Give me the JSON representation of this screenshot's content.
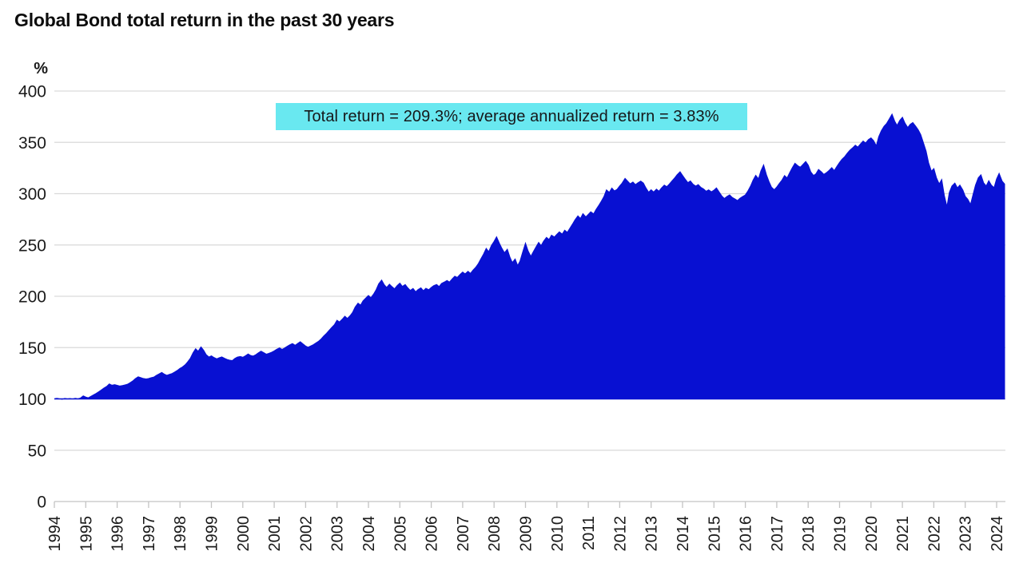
{
  "title": "Global Bond total return in the past 30 years",
  "annotation": {
    "text": "Total return = 209.3%; average annualized return = 3.83%",
    "bg_color": "#69e8f0",
    "text_color": "#16181a"
  },
  "colors": {
    "area_fill": "#0810d2",
    "gridline": "#d9d9d9",
    "axis_line": "#c4c4c4",
    "label_text": "#1a1a1a"
  },
  "y_axis": {
    "unit": "%",
    "ticks": [
      0,
      50,
      100,
      150,
      200,
      250,
      300,
      350,
      400
    ]
  },
  "x_axis": {
    "ticks": [
      1994,
      1995,
      1996,
      1997,
      1998,
      1999,
      2000,
      2001,
      2002,
      2003,
      2004,
      2005,
      2006,
      2007,
      2008,
      2009,
      2010,
      2011,
      2012,
      2013,
      2014,
      2015,
      2016,
      2017,
      2018,
      2019,
      2020,
      2021,
      2022,
      2023,
      2024
    ]
  },
  "chart_data": {
    "type": "area",
    "title": "Global Bond total return in the past 30 years",
    "ylabel": "%",
    "ylim": [
      0,
      400
    ],
    "xlim": [
      1994,
      2024.3
    ],
    "baseline": 100,
    "grid": "horizontal",
    "legend": "none",
    "annotation": "Total return = 209.3%; average annualized return = 3.83%",
    "total_return_pct": 209.3,
    "avg_annualized_return_pct": 3.83,
    "final_index_value": 309.3,
    "points": [
      [
        1994.0,
        100.0
      ],
      [
        1994.08,
        100.4
      ],
      [
        1994.17,
        100.1
      ],
      [
        1994.25,
        99.8
      ],
      [
        1994.33,
        100.3
      ],
      [
        1994.42,
        100.0
      ],
      [
        1994.5,
        100.2
      ],
      [
        1994.58,
        99.9
      ],
      [
        1994.67,
        100.4
      ],
      [
        1994.75,
        100.1
      ],
      [
        1994.83,
        100.6
      ],
      [
        1994.92,
        102.8
      ],
      [
        1995.0,
        101.6
      ],
      [
        1995.08,
        100.9
      ],
      [
        1995.17,
        102.5
      ],
      [
        1995.25,
        103.8
      ],
      [
        1995.33,
        105.2
      ],
      [
        1995.42,
        106.9
      ],
      [
        1995.5,
        108.6
      ],
      [
        1995.58,
        110.4
      ],
      [
        1995.67,
        112.1
      ],
      [
        1995.75,
        114.4
      ],
      [
        1995.83,
        113.2
      ],
      [
        1995.92,
        113.8
      ],
      [
        1996.0,
        113.1
      ],
      [
        1996.08,
        112.4
      ],
      [
        1996.17,
        112.9
      ],
      [
        1996.25,
        113.5
      ],
      [
        1996.33,
        114.2
      ],
      [
        1996.42,
        115.8
      ],
      [
        1996.5,
        117.4
      ],
      [
        1996.58,
        119.6
      ],
      [
        1996.67,
        121.4
      ],
      [
        1996.75,
        120.6
      ],
      [
        1996.83,
        119.8
      ],
      [
        1996.92,
        119.3
      ],
      [
        1997.0,
        119.7
      ],
      [
        1997.08,
        120.5
      ],
      [
        1997.17,
        121.2
      ],
      [
        1997.25,
        122.8
      ],
      [
        1997.33,
        124.1
      ],
      [
        1997.42,
        125.6
      ],
      [
        1997.5,
        124.0
      ],
      [
        1997.58,
        122.9
      ],
      [
        1997.67,
        123.8
      ],
      [
        1997.75,
        124.6
      ],
      [
        1997.83,
        126.0
      ],
      [
        1997.92,
        127.7
      ],
      [
        1998.0,
        129.6
      ],
      [
        1998.08,
        131.0
      ],
      [
        1998.17,
        133.2
      ],
      [
        1998.25,
        136.0
      ],
      [
        1998.33,
        139.4
      ],
      [
        1998.42,
        144.8
      ],
      [
        1998.5,
        148.6
      ],
      [
        1998.58,
        146.2
      ],
      [
        1998.67,
        150.4
      ],
      [
        1998.75,
        147.2
      ],
      [
        1998.83,
        143.1
      ],
      [
        1998.92,
        140.6
      ],
      [
        1999.0,
        141.8
      ],
      [
        1999.08,
        140.2
      ],
      [
        1999.17,
        138.9
      ],
      [
        1999.25,
        140.0
      ],
      [
        1999.33,
        140.8
      ],
      [
        1999.42,
        139.4
      ],
      [
        1999.5,
        138.3
      ],
      [
        1999.58,
        137.6
      ],
      [
        1999.67,
        137.2
      ],
      [
        1999.75,
        139.3
      ],
      [
        1999.83,
        140.6
      ],
      [
        1999.92,
        141.2
      ],
      [
        2000.0,
        140.4
      ],
      [
        2000.08,
        141.8
      ],
      [
        2000.17,
        143.6
      ],
      [
        2000.25,
        142.2
      ],
      [
        2000.33,
        141.6
      ],
      [
        2000.42,
        143.0
      ],
      [
        2000.5,
        144.8
      ],
      [
        2000.58,
        146.4
      ],
      [
        2000.67,
        144.9
      ],
      [
        2000.75,
        143.4
      ],
      [
        2000.83,
        144.2
      ],
      [
        2000.92,
        145.3
      ],
      [
        2001.0,
        146.6
      ],
      [
        2001.08,
        148.2
      ],
      [
        2001.17,
        149.6
      ],
      [
        2001.25,
        148.1
      ],
      [
        2001.33,
        149.4
      ],
      [
        2001.42,
        151.2
      ],
      [
        2001.5,
        152.6
      ],
      [
        2001.58,
        153.8
      ],
      [
        2001.67,
        152.1
      ],
      [
        2001.75,
        153.9
      ],
      [
        2001.83,
        155.6
      ],
      [
        2001.92,
        153.2
      ],
      [
        2002.0,
        151.4
      ],
      [
        2002.08,
        150.2
      ],
      [
        2002.17,
        151.6
      ],
      [
        2002.25,
        152.8
      ],
      [
        2002.33,
        154.4
      ],
      [
        2002.42,
        156.2
      ],
      [
        2002.5,
        158.4
      ],
      [
        2002.58,
        161.2
      ],
      [
        2002.67,
        163.8
      ],
      [
        2002.75,
        166.6
      ],
      [
        2002.83,
        169.4
      ],
      [
        2002.92,
        172.3
      ],
      [
        2003.0,
        176.4
      ],
      [
        2003.08,
        174.8
      ],
      [
        2003.17,
        177.6
      ],
      [
        2003.25,
        180.4
      ],
      [
        2003.33,
        178.2
      ],
      [
        2003.42,
        181.0
      ],
      [
        2003.5,
        184.2
      ],
      [
        2003.58,
        189.4
      ],
      [
        2003.67,
        193.1
      ],
      [
        2003.75,
        191.2
      ],
      [
        2003.83,
        195.4
      ],
      [
        2003.92,
        198.2
      ],
      [
        2004.0,
        200.6
      ],
      [
        2004.08,
        198.4
      ],
      [
        2004.17,
        202.2
      ],
      [
        2004.25,
        206.4
      ],
      [
        2004.33,
        212.1
      ],
      [
        2004.42,
        215.6
      ],
      [
        2004.5,
        211.2
      ],
      [
        2004.58,
        208.4
      ],
      [
        2004.67,
        211.6
      ],
      [
        2004.75,
        209.2
      ],
      [
        2004.83,
        207.1
      ],
      [
        2004.92,
        210.4
      ],
      [
        2005.0,
        212.6
      ],
      [
        2005.08,
        209.4
      ],
      [
        2005.17,
        211.2
      ],
      [
        2005.25,
        208.2
      ],
      [
        2005.33,
        205.6
      ],
      [
        2005.42,
        207.4
      ],
      [
        2005.5,
        204.2
      ],
      [
        2005.58,
        206.4
      ],
      [
        2005.67,
        208.1
      ],
      [
        2005.75,
        205.2
      ],
      [
        2005.83,
        207.6
      ],
      [
        2005.92,
        206.2
      ],
      [
        2006.0,
        208.4
      ],
      [
        2006.08,
        210.2
      ],
      [
        2006.17,
        211.4
      ],
      [
        2006.25,
        209.2
      ],
      [
        2006.33,
        212.4
      ],
      [
        2006.42,
        213.8
      ],
      [
        2006.5,
        215.2
      ],
      [
        2006.58,
        213.6
      ],
      [
        2006.67,
        216.8
      ],
      [
        2006.75,
        219.4
      ],
      [
        2006.83,
        218.2
      ],
      [
        2006.92,
        221.2
      ],
      [
        2007.0,
        223.4
      ],
      [
        2007.08,
        221.6
      ],
      [
        2007.17,
        224.2
      ],
      [
        2007.25,
        222.1
      ],
      [
        2007.33,
        225.4
      ],
      [
        2007.42,
        228.2
      ],
      [
        2007.5,
        231.6
      ],
      [
        2007.58,
        236.2
      ],
      [
        2007.67,
        241.1
      ],
      [
        2007.75,
        246.4
      ],
      [
        2007.83,
        243.2
      ],
      [
        2007.92,
        249.6
      ],
      [
        2008.0,
        253.2
      ],
      [
        2008.08,
        257.6
      ],
      [
        2008.17,
        251.2
      ],
      [
        2008.25,
        246.4
      ],
      [
        2008.33,
        242.2
      ],
      [
        2008.42,
        245.6
      ],
      [
        2008.5,
        238.2
      ],
      [
        2008.58,
        232.6
      ],
      [
        2008.67,
        236.1
      ],
      [
        2008.75,
        229.6
      ],
      [
        2008.83,
        234.2
      ],
      [
        2008.92,
        243.6
      ],
      [
        2009.0,
        251.4
      ],
      [
        2009.08,
        244.2
      ],
      [
        2009.17,
        238.6
      ],
      [
        2009.25,
        243.1
      ],
      [
        2009.33,
        247.6
      ],
      [
        2009.42,
        252.2
      ],
      [
        2009.5,
        249.1
      ],
      [
        2009.58,
        253.6
      ],
      [
        2009.67,
        257.2
      ],
      [
        2009.75,
        255.1
      ],
      [
        2009.83,
        259.4
      ],
      [
        2009.92,
        257.6
      ],
      [
        2010.0,
        260.2
      ],
      [
        2010.08,
        262.6
      ],
      [
        2010.17,
        260.4
      ],
      [
        2010.25,
        264.2
      ],
      [
        2010.33,
        262.1
      ],
      [
        2010.42,
        266.4
      ],
      [
        2010.5,
        270.2
      ],
      [
        2010.58,
        274.4
      ],
      [
        2010.67,
        278.1
      ],
      [
        2010.75,
        275.6
      ],
      [
        2010.83,
        280.2
      ],
      [
        2010.92,
        277.1
      ],
      [
        2011.0,
        279.6
      ],
      [
        2011.08,
        282.2
      ],
      [
        2011.17,
        280.1
      ],
      [
        2011.25,
        284.4
      ],
      [
        2011.33,
        288.2
      ],
      [
        2011.42,
        292.6
      ],
      [
        2011.5,
        297.1
      ],
      [
        2011.58,
        303.4
      ],
      [
        2011.67,
        301.1
      ],
      [
        2011.75,
        305.2
      ],
      [
        2011.83,
        302.6
      ],
      [
        2011.92,
        304.1
      ],
      [
        2012.0,
        307.4
      ],
      [
        2012.08,
        310.2
      ],
      [
        2012.17,
        314.6
      ],
      [
        2012.25,
        312.1
      ],
      [
        2012.33,
        309.4
      ],
      [
        2012.42,
        311.2
      ],
      [
        2012.5,
        308.6
      ],
      [
        2012.58,
        310.4
      ],
      [
        2012.67,
        312.1
      ],
      [
        2012.75,
        310.2
      ],
      [
        2012.83,
        305.6
      ],
      [
        2012.92,
        301.2
      ],
      [
        2013.0,
        303.6
      ],
      [
        2013.08,
        301.4
      ],
      [
        2013.17,
        304.2
      ],
      [
        2013.25,
        302.2
      ],
      [
        2013.33,
        305.4
      ],
      [
        2013.42,
        308.2
      ],
      [
        2013.5,
        306.6
      ],
      [
        2013.58,
        309.2
      ],
      [
        2013.67,
        312.4
      ],
      [
        2013.75,
        315.2
      ],
      [
        2013.83,
        318.4
      ],
      [
        2013.92,
        321.2
      ],
      [
        2014.0,
        317.6
      ],
      [
        2014.08,
        314.2
      ],
      [
        2014.17,
        310.6
      ],
      [
        2014.25,
        312.2
      ],
      [
        2014.33,
        309.1
      ],
      [
        2014.42,
        307.2
      ],
      [
        2014.5,
        308.6
      ],
      [
        2014.58,
        306.1
      ],
      [
        2014.67,
        304.4
      ],
      [
        2014.75,
        302.2
      ],
      [
        2014.83,
        303.6
      ],
      [
        2014.92,
        301.6
      ],
      [
        2015.0,
        303.2
      ],
      [
        2015.08,
        305.4
      ],
      [
        2015.17,
        301.2
      ],
      [
        2015.25,
        297.6
      ],
      [
        2015.33,
        295.1
      ],
      [
        2015.42,
        297.2
      ],
      [
        2015.5,
        298.6
      ],
      [
        2015.58,
        296.2
      ],
      [
        2015.67,
        294.6
      ],
      [
        2015.75,
        293.1
      ],
      [
        2015.83,
        295.4
      ],
      [
        2015.92,
        297.2
      ],
      [
        2016.0,
        298.6
      ],
      [
        2016.08,
        302.2
      ],
      [
        2016.17,
        307.4
      ],
      [
        2016.25,
        313.1
      ],
      [
        2016.33,
        317.6
      ],
      [
        2016.42,
        314.2
      ],
      [
        2016.5,
        322.1
      ],
      [
        2016.58,
        327.6
      ],
      [
        2016.67,
        318.2
      ],
      [
        2016.75,
        311.6
      ],
      [
        2016.83,
        306.2
      ],
      [
        2016.92,
        303.6
      ],
      [
        2017.0,
        306.2
      ],
      [
        2017.08,
        309.6
      ],
      [
        2017.17,
        313.2
      ],
      [
        2017.25,
        317.4
      ],
      [
        2017.33,
        315.1
      ],
      [
        2017.42,
        320.6
      ],
      [
        2017.5,
        325.2
      ],
      [
        2017.58,
        329.4
      ],
      [
        2017.67,
        327.1
      ],
      [
        2017.75,
        325.6
      ],
      [
        2017.83,
        328.2
      ],
      [
        2017.92,
        331.1
      ],
      [
        2018.0,
        327.6
      ],
      [
        2018.08,
        321.2
      ],
      [
        2018.17,
        317.6
      ],
      [
        2018.25,
        319.2
      ],
      [
        2018.33,
        323.4
      ],
      [
        2018.42,
        321.1
      ],
      [
        2018.5,
        318.6
      ],
      [
        2018.58,
        320.2
      ],
      [
        2018.67,
        322.6
      ],
      [
        2018.75,
        325.1
      ],
      [
        2018.83,
        322.2
      ],
      [
        2018.92,
        326.6
      ],
      [
        2019.0,
        330.2
      ],
      [
        2019.08,
        333.4
      ],
      [
        2019.17,
        336.1
      ],
      [
        2019.25,
        339.4
      ],
      [
        2019.33,
        342.2
      ],
      [
        2019.42,
        344.6
      ],
      [
        2019.5,
        347.1
      ],
      [
        2019.58,
        345.2
      ],
      [
        2019.67,
        348.4
      ],
      [
        2019.75,
        351.1
      ],
      [
        2019.83,
        349.2
      ],
      [
        2019.92,
        352.6
      ],
      [
        2020.0,
        354.2
      ],
      [
        2020.08,
        351.6
      ],
      [
        2020.17,
        346.2
      ],
      [
        2020.25,
        355.4
      ],
      [
        2020.33,
        361.2
      ],
      [
        2020.42,
        365.6
      ],
      [
        2020.5,
        368.2
      ],
      [
        2020.58,
        372.4
      ],
      [
        2020.67,
        377.1
      ],
      [
        2020.75,
        370.6
      ],
      [
        2020.83,
        366.2
      ],
      [
        2020.92,
        371.4
      ],
      [
        2021.0,
        374.2
      ],
      [
        2021.08,
        368.6
      ],
      [
        2021.17,
        364.2
      ],
      [
        2021.25,
        367.4
      ],
      [
        2021.33,
        369.1
      ],
      [
        2021.42,
        365.6
      ],
      [
        2021.5,
        362.1
      ],
      [
        2021.58,
        357.4
      ],
      [
        2021.67,
        349.2
      ],
      [
        2021.75,
        341.4
      ],
      [
        2021.83,
        330.1
      ],
      [
        2021.92,
        321.6
      ],
      [
        2022.0,
        324.1
      ],
      [
        2022.08,
        315.6
      ],
      [
        2022.17,
        309.2
      ],
      [
        2022.25,
        313.4
      ],
      [
        2022.33,
        298.1
      ],
      [
        2022.42,
        286.6
      ],
      [
        2022.5,
        301.2
      ],
      [
        2022.58,
        307.4
      ],
      [
        2022.67,
        310.1
      ],
      [
        2022.75,
        305.4
      ],
      [
        2022.83,
        308.1
      ],
      [
        2022.92,
        303.4
      ],
      [
        2023.0,
        297.2
      ],
      [
        2023.08,
        294.4
      ],
      [
        2023.17,
        289.1
      ],
      [
        2023.25,
        298.6
      ],
      [
        2023.33,
        308.2
      ],
      [
        2023.42,
        315.4
      ],
      [
        2023.5,
        318.1
      ],
      [
        2023.58,
        310.6
      ],
      [
        2023.67,
        307.2
      ],
      [
        2023.75,
        312.4
      ],
      [
        2023.83,
        308.2
      ],
      [
        2023.92,
        305.6
      ],
      [
        2024.0,
        314.1
      ],
      [
        2024.08,
        319.4
      ],
      [
        2024.17,
        312.2
      ],
      [
        2024.25,
        309.3
      ]
    ]
  }
}
